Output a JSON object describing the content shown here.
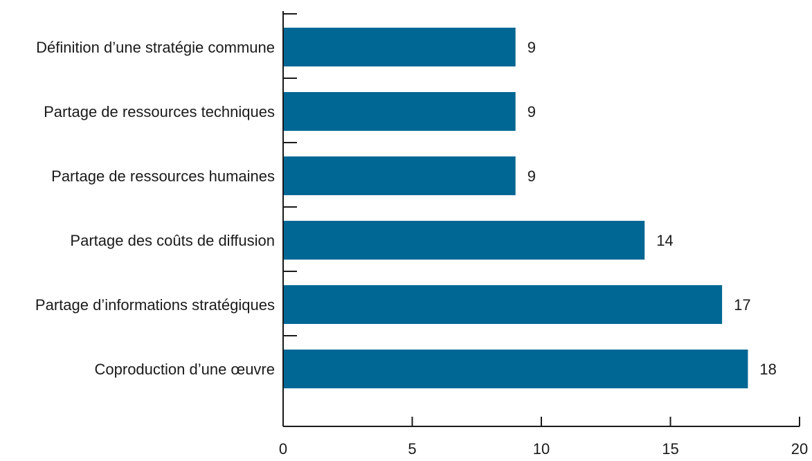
{
  "chart_data": {
    "type": "bar",
    "orientation": "horizontal",
    "categories": [
      "Définition d’une stratégie commune",
      "Partage de ressources techniques",
      "Partage de ressources humaines",
      "Partage des coûts de diffusion",
      "Partage d’informations stratégiques",
      "Coproduction d’une œuvre"
    ],
    "values": [
      9,
      9,
      9,
      14,
      17,
      18
    ],
    "value_labels": [
      "9",
      "9",
      "9",
      "14",
      "17",
      "18"
    ],
    "xlim": [
      0,
      20
    ],
    "x_ticks": [
      0,
      5,
      10,
      15,
      20
    ],
    "x_tick_labels": [
      "0",
      "5",
      "10",
      "15",
      "20"
    ],
    "title": "",
    "xlabel": "",
    "ylabel": "",
    "grid": false,
    "legend": "none",
    "colors": {
      "bar": "#006794",
      "axis": "#1a1a1a",
      "text": "#1a1a1a"
    }
  }
}
